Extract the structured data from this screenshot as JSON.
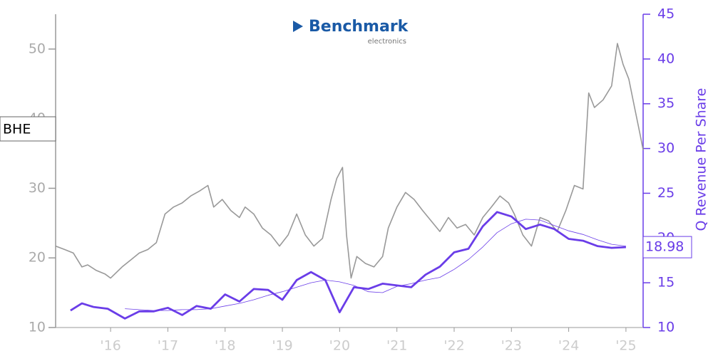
{
  "chart_data": {
    "type": "line",
    "logo": {
      "name": "Benchmark",
      "tagline": "electronics"
    },
    "y2label": "Q Revenue Per Share",
    "xlim": [
      2015.04,
      2025.3
    ],
    "xticks": [
      {
        "value": 2016,
        "label": "'16"
      },
      {
        "value": 2017,
        "label": "'17"
      },
      {
        "value": 2018,
        "label": "'18"
      },
      {
        "value": 2019,
        "label": "'19"
      },
      {
        "value": 2020,
        "label": "'20"
      },
      {
        "value": 2021,
        "label": "'21"
      },
      {
        "value": 2022,
        "label": "'22"
      },
      {
        "value": 2023,
        "label": "'23"
      },
      {
        "value": 2024,
        "label": "'24"
      },
      {
        "value": 2025,
        "label": "'25"
      }
    ],
    "ylim": [
      10,
      55
    ],
    "yticks": [
      10,
      20,
      30,
      40,
      50
    ],
    "y2lim": [
      10,
      45
    ],
    "y2ticks": [
      10,
      15,
      20,
      25,
      30,
      35,
      40,
      45
    ],
    "series": [
      {
        "name": "BHE",
        "color": "#999999",
        "axis": "y",
        "x": [
          2015.04,
          2015.2,
          2015.35,
          2015.5,
          2015.6,
          2015.75,
          2015.9,
          2016.0,
          2016.2,
          2016.35,
          2016.5,
          2016.65,
          2016.8,
          2016.95,
          2017.1,
          2017.25,
          2017.4,
          2017.55,
          2017.7,
          2017.8,
          2017.95,
          2018.1,
          2018.25,
          2018.35,
          2018.5,
          2018.65,
          2018.8,
          2018.95,
          2019.1,
          2019.25,
          2019.4,
          2019.55,
          2019.7,
          2019.85,
          2019.95,
          2020.05,
          2020.12,
          2020.2,
          2020.3,
          2020.45,
          2020.6,
          2020.75,
          2020.85,
          2021.0,
          2021.15,
          2021.3,
          2021.45,
          2021.6,
          2021.75,
          2021.9,
          2022.05,
          2022.2,
          2022.35,
          2022.5,
          2022.65,
          2022.8,
          2022.95,
          2023.05,
          2023.2,
          2023.35,
          2023.5,
          2023.65,
          2023.8,
          2023.95,
          2024.1,
          2024.25,
          2024.35,
          2024.45,
          2024.6,
          2024.75,
          2024.85,
          2024.95,
          2025.05,
          2025.15,
          2025.25,
          2025.3
        ],
        "values": [
          21.7,
          21.2,
          20.7,
          18.7,
          19,
          18.2,
          17.7,
          17.1,
          18.7,
          19.7,
          20.7,
          21.2,
          22.2,
          26.3,
          27.3,
          27.9,
          28.9,
          29.6,
          30.4,
          27.3,
          28.4,
          26.8,
          25.8,
          27.3,
          26.3,
          24.3,
          23.3,
          21.7,
          23.3,
          26.3,
          23.3,
          21.7,
          22.8,
          28.4,
          31.4,
          33,
          23.3,
          17.1,
          20.2,
          19.2,
          18.7,
          20.2,
          24.3,
          27.3,
          29.4,
          28.4,
          26.8,
          25.3,
          23.8,
          25.8,
          24.3,
          24.8,
          23.3,
          25.8,
          27.3,
          28.9,
          27.9,
          26.3,
          23.3,
          21.7,
          25.8,
          25.3,
          23.8,
          26.8,
          30.4,
          29.9,
          43.7,
          41.6,
          42.7,
          44.7,
          50.8,
          47.8,
          45.7,
          41.6,
          37.6,
          35.5
        ]
      },
      {
        "color": "#6a3de8",
        "axis": "y2",
        "x": [
          2015.3,
          2015.5,
          2015.7,
          2015.95,
          2016.25,
          2016.5,
          2016.75,
          2017.0,
          2017.25,
          2017.5,
          2017.75,
          2018.0,
          2018.25,
          2018.5,
          2018.75,
          2019.0,
          2019.25,
          2019.5,
          2019.75,
          2020.0,
          2020.25,
          2020.5,
          2020.75,
          2021.0,
          2021.25,
          2021.5,
          2021.75,
          2022.0,
          2022.25,
          2022.5,
          2022.75,
          2023.0,
          2023.25,
          2023.5,
          2023.75,
          2024.0,
          2024.25,
          2024.5,
          2024.75,
          2025.0
        ],
        "values": [
          11.9,
          12.7,
          12.3,
          12.1,
          11.0,
          11.8,
          11.8,
          12.2,
          11.4,
          12.4,
          12.1,
          13.7,
          12.9,
          14.3,
          14.2,
          13.1,
          15.3,
          16.2,
          15.3,
          11.7,
          14.5,
          14.3,
          14.9,
          14.7,
          14.5,
          15.9,
          16.8,
          18.4,
          18.8,
          21.3,
          22.9,
          22.4,
          21.0,
          21.5,
          21.0,
          19.9,
          19.7,
          19.1,
          18.9,
          18.98
        ]
      },
      {
        "color": "#6a3de8",
        "axis": "y2",
        "x": [
          2016.25,
          2016.5,
          2016.75,
          2017.0,
          2017.25,
          2017.5,
          2017.75,
          2018.0,
          2018.25,
          2018.5,
          2018.75,
          2019.0,
          2019.25,
          2019.5,
          2019.75,
          2020.0,
          2020.25,
          2020.5,
          2020.75,
          2021.0,
          2021.25,
          2021.5,
          2021.75,
          2022.0,
          2022.25,
          2022.5,
          2022.75,
          2023.0,
          2023.25,
          2023.5,
          2023.75,
          2024.0,
          2024.25,
          2024.5,
          2024.75,
          2025.0
        ],
        "values": [
          12.1,
          12.0,
          11.9,
          11.9,
          12.0,
          12.0,
          12.1,
          12.4,
          12.7,
          13.1,
          13.6,
          14.0,
          14.5,
          15.0,
          15.3,
          15.1,
          14.7,
          14.0,
          13.9,
          14.6,
          14.9,
          15.3,
          15.6,
          16.5,
          17.6,
          19.0,
          20.6,
          21.6,
          22.1,
          22.0,
          21.4,
          20.8,
          20.4,
          19.8,
          19.3,
          19.1
        ]
      }
    ]
  }
}
